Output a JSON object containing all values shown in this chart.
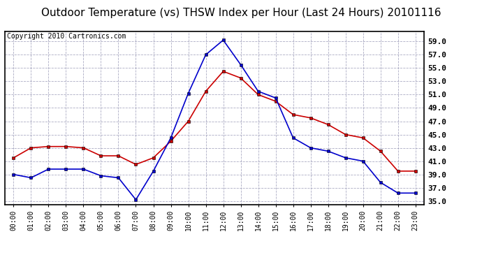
{
  "title": "Outdoor Temperature (vs) THSW Index per Hour (Last 24 Hours) 20101116",
  "copyright_text": "Copyright 2010 Cartronics.com",
  "hours": [
    "00:00",
    "01:00",
    "02:00",
    "03:00",
    "04:00",
    "05:00",
    "06:00",
    "07:00",
    "08:00",
    "09:00",
    "10:00",
    "11:00",
    "12:00",
    "13:00",
    "14:00",
    "15:00",
    "16:00",
    "17:00",
    "18:00",
    "19:00",
    "20:00",
    "21:00",
    "22:00",
    "23:00"
  ],
  "temp_red": [
    41.5,
    43.0,
    43.2,
    43.2,
    43.0,
    41.8,
    41.8,
    40.5,
    41.5,
    44.0,
    47.0,
    51.5,
    54.5,
    53.5,
    51.0,
    50.0,
    48.0,
    47.5,
    46.5,
    45.0,
    44.5,
    42.5,
    39.5,
    39.5
  ],
  "temp_blue": [
    39.0,
    38.5,
    39.8,
    39.8,
    39.8,
    38.8,
    38.5,
    35.2,
    39.5,
    44.5,
    51.2,
    57.0,
    59.2,
    55.5,
    51.5,
    50.5,
    44.5,
    43.0,
    42.5,
    41.5,
    41.0,
    37.8,
    36.2,
    36.2
  ],
  "ylim": [
    34.5,
    60.5
  ],
  "yticks": [
    35.0,
    37.0,
    39.0,
    41.0,
    43.0,
    45.0,
    47.0,
    49.0,
    51.0,
    53.0,
    55.0,
    57.0,
    59.0
  ],
  "red_color": "#cc0000",
  "blue_color": "#0000cc",
  "grid_color": "#8888aa",
  "bg_color": "#ffffff",
  "plot_bg_color": "#ffffff",
  "title_fontsize": 11,
  "copyright_fontsize": 7,
  "marker_size": 3.5,
  "line_width": 1.2
}
